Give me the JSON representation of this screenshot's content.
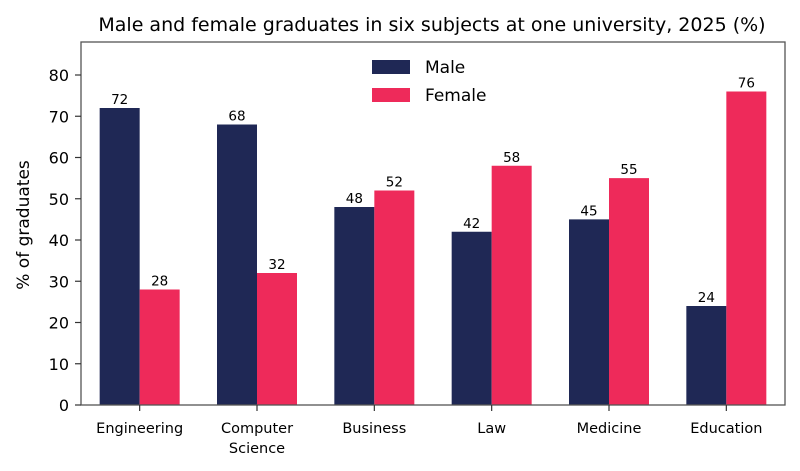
{
  "chart_data": {
    "type": "bar",
    "title": "Male and female graduates in six subjects at one university, 2025 (%)",
    "xlabel": "",
    "ylabel": "% of graduates",
    "categories": [
      "Engineering",
      "Computer\nScience",
      "Business",
      "Law",
      "Medicine",
      "Education"
    ],
    "series": [
      {
        "name": "Male",
        "color": "#1f2855",
        "values": [
          72,
          68,
          48,
          42,
          45,
          24
        ]
      },
      {
        "name": "Female",
        "color": "#ee2a5a",
        "values": [
          28,
          32,
          52,
          58,
          55,
          76
        ]
      }
    ],
    "ylim": [
      0,
      88
    ],
    "yticks": [
      0,
      10,
      20,
      30,
      40,
      50,
      60,
      70,
      80
    ],
    "grid": false,
    "legend_position": "top-center",
    "data_labels": true
  }
}
